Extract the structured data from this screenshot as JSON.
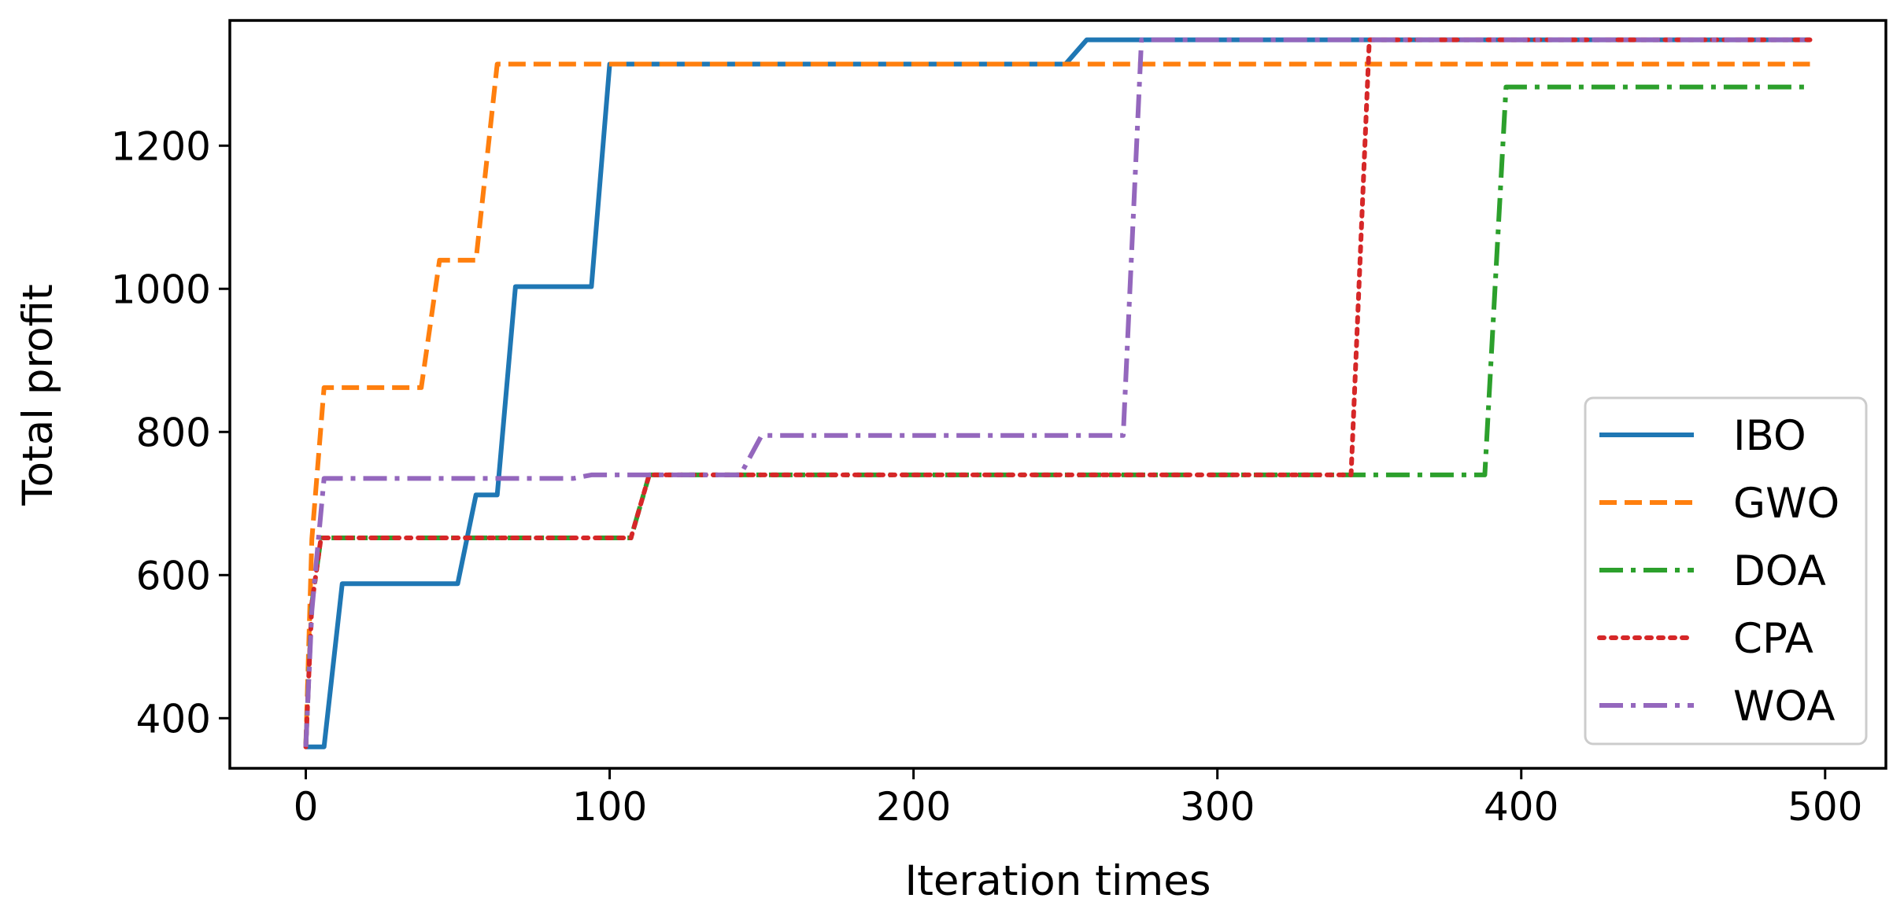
{
  "chart_data": {
    "type": "line",
    "title": "",
    "xlabel": "Iteration times",
    "ylabel": "Total profit",
    "xlim": [
      -25,
      520
    ],
    "ylim": [
      330,
      1375
    ],
    "xticks": [
      0,
      100,
      200,
      300,
      400,
      500
    ],
    "yticks": [
      400,
      600,
      800,
      1000,
      1200
    ],
    "grid": false,
    "legend_position": "lower right",
    "series": [
      {
        "name": "IBO",
        "color": "#1f77b4",
        "dash": "solid",
        "points": [
          [
            0,
            360
          ],
          [
            6,
            360
          ],
          [
            12,
            588
          ],
          [
            50,
            588
          ],
          [
            56,
            712
          ],
          [
            63,
            712
          ],
          [
            69,
            1003
          ],
          [
            94,
            1003
          ],
          [
            100,
            1314
          ],
          [
            250,
            1314
          ],
          [
            257,
            1348
          ],
          [
            495,
            1348
          ]
        ]
      },
      {
        "name": "GWO",
        "color": "#ff7f0e",
        "dash": "dashed",
        "points": [
          [
            0,
            360
          ],
          [
            2,
            650
          ],
          [
            6,
            862
          ],
          [
            38,
            862
          ],
          [
            44,
            1040
          ],
          [
            56,
            1040
          ],
          [
            63,
            1314
          ],
          [
            495,
            1314
          ]
        ]
      },
      {
        "name": "DOA",
        "color": "#2ca02c",
        "dash": "dashdot",
        "points": [
          [
            0,
            360
          ],
          [
            2,
            560
          ],
          [
            5,
            652
          ],
          [
            107,
            652
          ],
          [
            113,
            740
          ],
          [
            388,
            740
          ],
          [
            395,
            1282
          ],
          [
            495,
            1282
          ]
        ]
      },
      {
        "name": "CPA",
        "color": "#d62728",
        "dash": "dotted",
        "points": [
          [
            0,
            360
          ],
          [
            2,
            560
          ],
          [
            5,
            652
          ],
          [
            107,
            652
          ],
          [
            113,
            740
          ],
          [
            344,
            740
          ],
          [
            350,
            1348
          ],
          [
            495,
            1348
          ]
        ]
      },
      {
        "name": "WOA",
        "color": "#9467bd",
        "dash": "dashdot",
        "points": [
          [
            0,
            360
          ],
          [
            2,
            550
          ],
          [
            6,
            735
          ],
          [
            88,
            735
          ],
          [
            94,
            740
          ],
          [
            143,
            740
          ],
          [
            150,
            795
          ],
          [
            269,
            795
          ],
          [
            275,
            1348
          ],
          [
            495,
            1348
          ]
        ]
      }
    ]
  }
}
